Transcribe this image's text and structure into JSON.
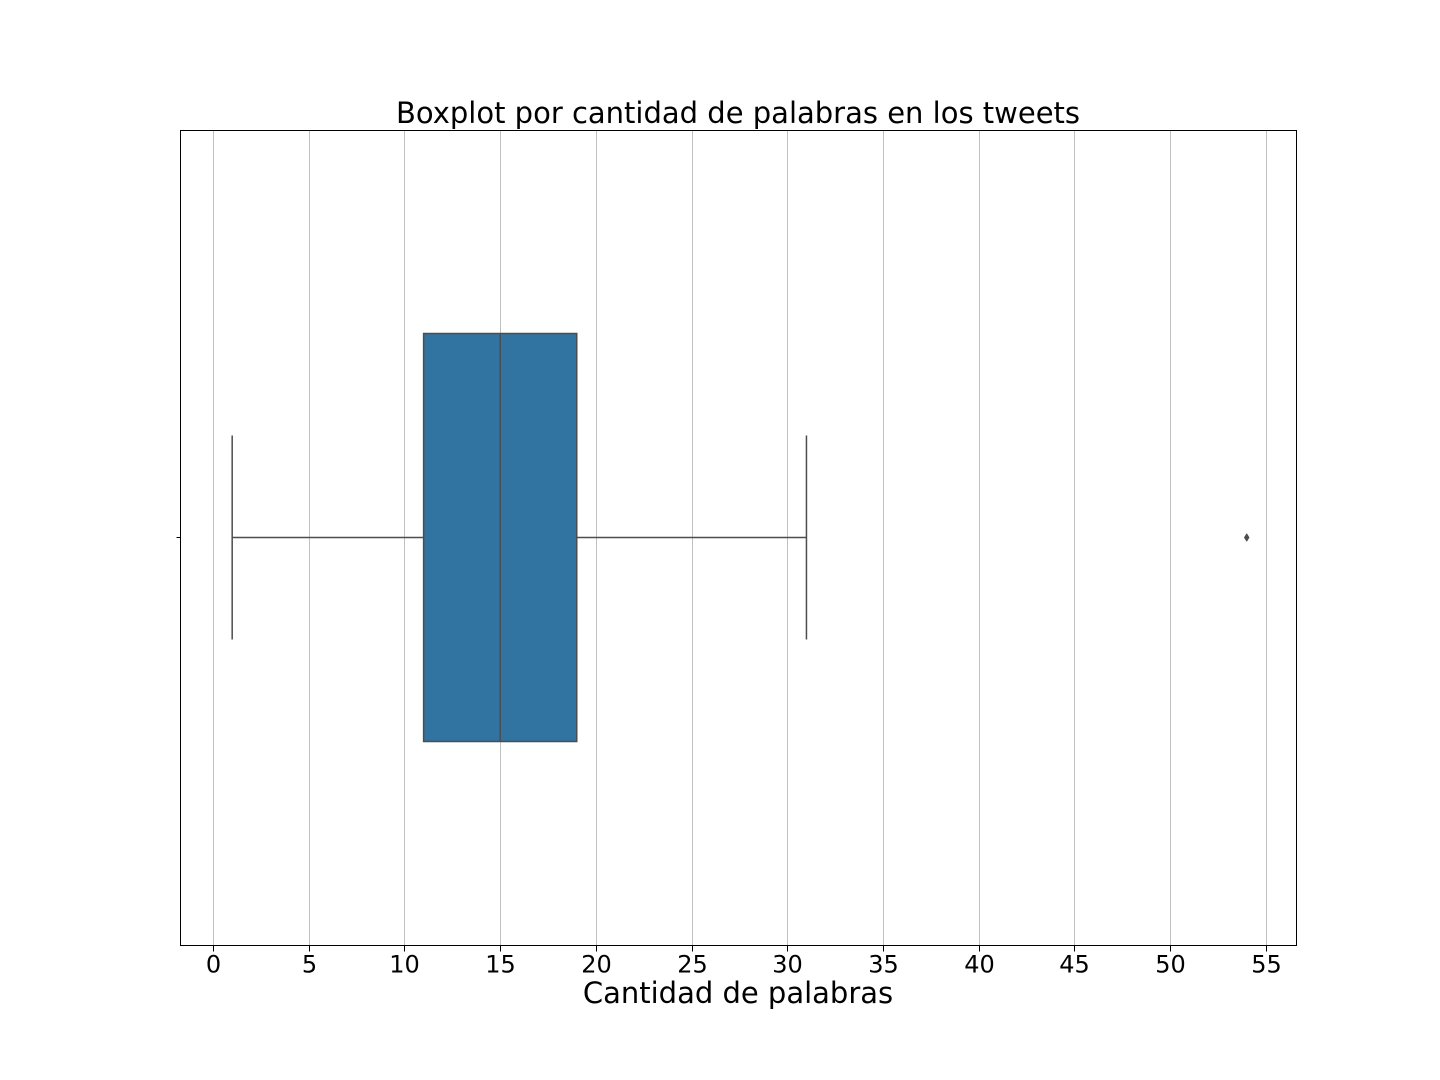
{
  "chart_data": {
    "type": "boxplot",
    "orientation": "horizontal",
    "title": "Boxplot por cantidad de palabras en los tweets",
    "xlabel": "Cantidad de palabras",
    "ylabel": "",
    "xlim": [
      -1.7,
      56.6
    ],
    "xticks": [
      0,
      5,
      10,
      15,
      20,
      25,
      30,
      35,
      40,
      45,
      50,
      55
    ],
    "grid": "x",
    "box": {
      "whisker_low": 1,
      "q1": 11,
      "median": 15,
      "q3": 19,
      "whisker_high": 31,
      "outliers": [
        54
      ]
    },
    "colors": {
      "box_fill": "#3274a1",
      "line": "#4d4d4d",
      "grid": "#c0c0c0",
      "spine": "#000000"
    }
  }
}
